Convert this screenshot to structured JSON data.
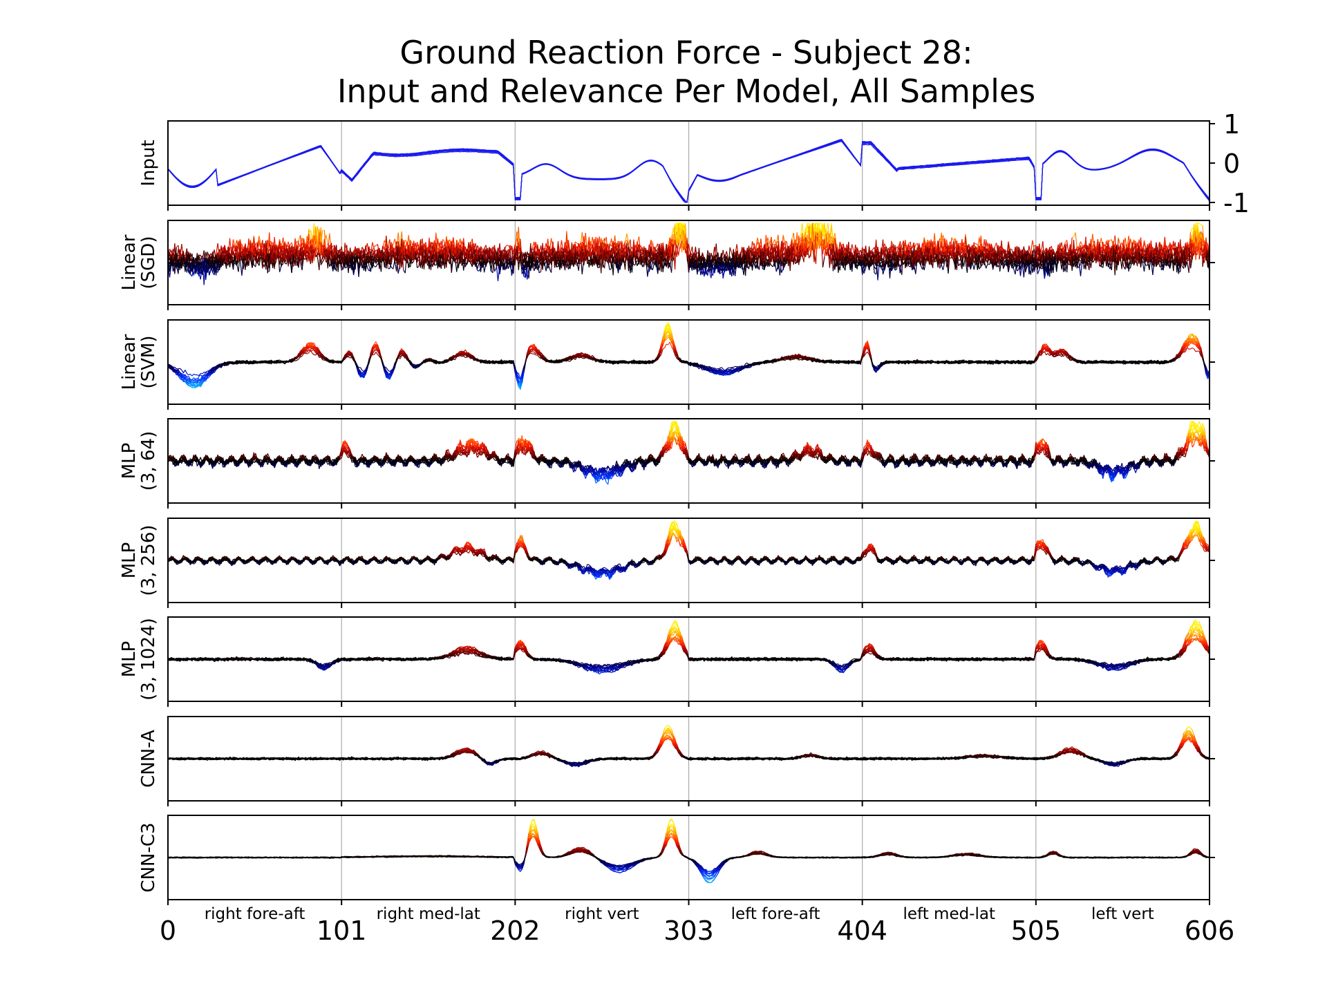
{
  "chart_data": {
    "type": "line",
    "title_line1": "Ground Reaction Force - Subject 28:",
    "title_line2": "Input and Relevance Per Model, All Samples",
    "x_ticks": [
      0,
      101,
      202,
      303,
      404,
      505,
      606
    ],
    "xlim": [
      0,
      606
    ],
    "segments": [
      "right fore-aft",
      "right med-lat",
      "right vert",
      "left fore-aft",
      "left med-lat",
      "left vert"
    ],
    "input_y_ticks": [
      "1",
      "0",
      "-1"
    ],
    "input_ylim": [
      -1,
      1
    ],
    "grid": "vertical lines at segment boundaries",
    "panels": [
      {
        "id": "input",
        "label": [
          "Input"
        ]
      },
      {
        "id": "linear-sgd",
        "label": [
          "Linear",
          "(SGD)"
        ]
      },
      {
        "id": "linear-svm",
        "label": [
          "Linear",
          "(SVM)"
        ]
      },
      {
        "id": "mlp-3-64",
        "label": [
          "MLP",
          "(3, 64)"
        ]
      },
      {
        "id": "mlp-3-256",
        "label": [
          "MLP",
          "(3, 256)"
        ]
      },
      {
        "id": "mlp-3-1024",
        "label": [
          "MLP",
          "(3, 1024)"
        ]
      },
      {
        "id": "cnn-a",
        "label": [
          "CNN-A"
        ]
      },
      {
        "id": "cnn-c3",
        "label": [
          "CNN-C3"
        ]
      }
    ],
    "colors": {
      "input_line": "#1a1aee",
      "relevance_positive": [
        "#000000",
        "#8b0000",
        "#ff2000",
        "#ff9a00",
        "#ffee00"
      ],
      "relevance_negative": [
        "#000000",
        "#00008b",
        "#0030ff",
        "#00a0ff",
        "#00ffff"
      ],
      "axis": "#000000",
      "grid": "#aaaaaa"
    }
  }
}
